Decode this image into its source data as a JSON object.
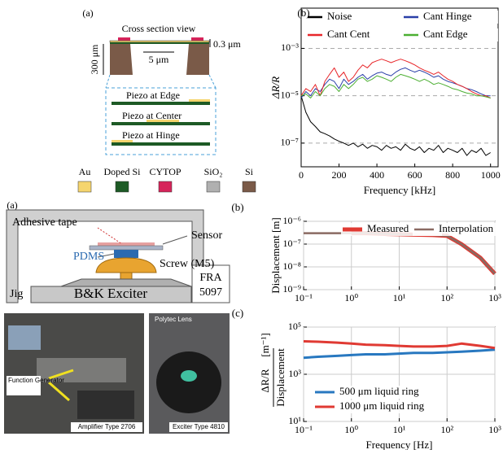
{
  "cross_section": {
    "panel": "(a)",
    "title": "Cross section view",
    "thickness": "0.3 μm",
    "gap": "5 μm",
    "depth": "300 μm",
    "variants": [
      "Piezo at Edge",
      "Piezo at Center",
      "Piezo at Hinge"
    ],
    "materials": [
      {
        "name": "Au",
        "color": "#f5d56e"
      },
      {
        "name": "Doped Si",
        "color": "#1d5a25"
      },
      {
        "name": "CYTOP",
        "color": "#d6245a"
      },
      {
        "name": "SiO₂",
        "color": "#b0b0b0"
      },
      {
        "name": "Si",
        "color": "#7a5a48"
      }
    ]
  },
  "setup": {
    "panel": "(a)",
    "labels": {
      "tape": "Adhesive tape",
      "sensor": "Sensor",
      "pdms": "PDMS",
      "screw": "Screw (M5)",
      "jig": "Jig",
      "exciter": "B&K Exciter",
      "fra": "FRA",
      "fra_model": "5097"
    },
    "photo_labels": {
      "generator": "Function Generator",
      "amplifier": "Amplifier Type 2706",
      "lens": "Polytec Lens",
      "exciter": "Exciter Type 4810"
    }
  },
  "chart_data": [
    {
      "type": "line",
      "label": "(b)",
      "xlabel": "Frequency [kHz]",
      "ylabel": "ΔR/R",
      "ylog": true,
      "grid": "y",
      "grid_dash": true,
      "xlim": [
        0,
        1040
      ],
      "ylim": [
        1e-08,
        0.05
      ],
      "xticks": [
        0,
        200,
        400,
        600,
        800,
        1000
      ],
      "yticks": [
        {
          "value": 0.001,
          "label": "10⁻³"
        },
        {
          "value": 1e-05,
          "label": "10⁻⁵"
        },
        {
          "value": 1e-07,
          "label": "10⁻⁷"
        }
      ],
      "x": [
        0,
        25,
        50,
        75,
        100,
        125,
        150,
        175,
        200,
        225,
        250,
        275,
        300,
        325,
        350,
        375,
        400,
        425,
        450,
        475,
        500,
        525,
        550,
        575,
        600,
        625,
        650,
        675,
        700,
        725,
        750,
        775,
        800,
        825,
        850,
        875,
        900,
        925,
        950,
        975,
        1000
      ],
      "series": [
        {
          "name": "Noise",
          "color": "#000000",
          "values": [
            1e-05,
            2e-06,
            8e-07,
            5e-07,
            3e-07,
            2.5e-07,
            2e-07,
            1.5e-07,
            1.2e-07,
            1e-07,
            8e-08,
            1e-07,
            7e-08,
            9e-08,
            6e-08,
            8e-08,
            7e-08,
            5e-08,
            8e-08,
            6e-08,
            7e-08,
            5e-08,
            9e-08,
            6e-08,
            5e-08,
            7e-08,
            4e-08,
            6e-08,
            5e-08,
            8e-08,
            4e-08,
            6e-08,
            5e-08,
            4e-08,
            6e-08,
            3e-08,
            5e-08,
            4e-08,
            6e-08,
            3e-08,
            4e-08
          ]
        },
        {
          "name": "Cant Hinge",
          "color": "#2a3fa8",
          "values": [
            8e-06,
            1.5e-05,
            1e-05,
            2e-05,
            1.5e-05,
            3e-05,
            5e-05,
            4e-05,
            2e-05,
            5e-05,
            3e-05,
            4e-05,
            6e-05,
            8e-05,
            5e-05,
            7e-05,
            9e-05,
            0.0001,
            8e-05,
            7e-05,
            0.0001,
            0.00013,
            0.00015,
            0.00012,
            0.0001,
            0.00012,
            0.0001,
            8e-05,
            6e-05,
            7e-05,
            5e-05,
            4e-05,
            3.5e-05,
            3e-05,
            2.5e-05,
            2e-05,
            1.8e-05,
            1.5e-05,
            1.2e-05,
            1e-05,
            1e-05
          ]
        },
        {
          "name": "Cant Cent",
          "color": "#e8262a",
          "values": [
            1e-05,
            2e-05,
            1.5e-05,
            3e-05,
            1e-05,
            4e-05,
            8e-05,
            0.00015,
            6e-05,
            0.0001,
            4e-05,
            6e-05,
            0.00012,
            0.0002,
            0.00015,
            0.00025,
            0.0003,
            0.00035,
            0.0003,
            0.00025,
            0.0003,
            0.00035,
            0.0003,
            0.00025,
            0.0002,
            0.00015,
            0.00012,
            0.0001,
            8e-05,
            0.0001,
            7e-05,
            5e-05,
            4e-05,
            3e-05,
            2.5e-05,
            2e-05,
            1.5e-05,
            1.2e-05,
            1e-05,
            1e-05,
            8e-06
          ]
        },
        {
          "name": "Cant Edge",
          "color": "#4caf32",
          "values": [
            1e-05,
            1.2e-05,
            8e-06,
            1.5e-05,
            1e-05,
            2e-05,
            3e-05,
            2.5e-05,
            1.5e-05,
            3e-05,
            2e-05,
            3e-05,
            5e-05,
            6e-05,
            4e-05,
            5e-05,
            7e-05,
            6e-05,
            5e-05,
            4e-05,
            6e-05,
            8e-05,
            7e-05,
            6e-05,
            5e-05,
            4e-05,
            5e-05,
            4e-05,
            3e-05,
            3.5e-05,
            3e-05,
            2.5e-05,
            2e-05,
            1.8e-05,
            1.5e-05,
            1.3e-05,
            1.2e-05,
            1e-05,
            1e-05,
            9e-06,
            8e-06
          ]
        }
      ]
    },
    {
      "type": "line",
      "label": "(b)",
      "ylabel": "Displacement [m]",
      "xlog": true,
      "ylog": true,
      "grid": "both",
      "xlim": [
        0.1,
        1000
      ],
      "ylim": [
        1e-09,
        1e-06
      ],
      "xticks": [
        {
          "value": 0.1,
          "label": "10⁻¹"
        },
        {
          "value": 1,
          "label": "10⁰"
        },
        {
          "value": 10,
          "label": "10¹"
        },
        {
          "value": 100,
          "label": "10²"
        },
        {
          "value": 1000,
          "label": "10³"
        }
      ],
      "yticks": [
        {
          "value": 1e-06,
          "label": "10⁻⁶"
        },
        {
          "value": 1e-07,
          "label": "10⁻⁷"
        },
        {
          "value": 1e-08,
          "label": "10⁻⁸"
        },
        {
          "value": 1e-09,
          "label": "10⁻⁹"
        }
      ],
      "x": [
        0.1,
        0.2,
        0.5,
        1,
        2,
        5,
        10,
        20,
        50,
        100,
        200,
        500,
        1000
      ],
      "series": [
        {
          "name": "Measured",
          "color": "#e03a33",
          "line_width": 5,
          "values": [
            null,
            null,
            null,
            3e-07,
            3e-07,
            2.8e-07,
            2.7e-07,
            2.6e-07,
            2.5e-07,
            2.3e-07,
            1e-07,
            2.5e-08,
            5e-09
          ]
        },
        {
          "name": "Interpolation",
          "color": "#8a6a62",
          "line_width": 2.5,
          "values": [
            3e-07,
            3e-07,
            3e-07,
            3e-07,
            3e-07,
            2.8e-07,
            2.7e-07,
            2.6e-07,
            2.5e-07,
            2.3e-07,
            1e-07,
            2.5e-08,
            5e-09
          ]
        }
      ]
    },
    {
      "type": "line",
      "label": "(c)",
      "xlabel": "Frequency [Hz]",
      "ylabel": "ΔR/R",
      "ylabel_denominator": "Displacement",
      "ylabel_unit": "[m⁻¹]",
      "xlog": true,
      "ylog": true,
      "grid": "both",
      "xlim": [
        0.1,
        1000
      ],
      "ylim": [
        10,
        100000
      ],
      "xticks": [
        {
          "value": 0.1,
          "label": "10⁻¹"
        },
        {
          "value": 1,
          "label": "10⁰"
        },
        {
          "value": 10,
          "label": "10¹"
        },
        {
          "value": 100,
          "label": "10²"
        },
        {
          "value": 1000,
          "label": "10³"
        }
      ],
      "yticks": [
        {
          "value": 100000,
          "label": "10⁵"
        },
        {
          "value": 1000,
          "label": "10³"
        },
        {
          "value": 10,
          "label": "10¹"
        }
      ],
      "x": [
        0.1,
        0.2,
        0.5,
        1,
        2,
        5,
        10,
        20,
        50,
        100,
        200,
        500,
        1000
      ],
      "series": [
        {
          "name": "500 μm liquid ring",
          "color": "#2878c0",
          "line_width": 3,
          "values": [
            5000,
            5500,
            6000,
            6500,
            7000,
            7000,
            7500,
            8000,
            8000,
            8500,
            9000,
            10000,
            11000
          ]
        },
        {
          "name": "1000 μm liquid ring",
          "color": "#e03a33",
          "line_width": 3,
          "values": [
            25000,
            24000,
            22000,
            20000,
            18000,
            17000,
            16000,
            15000,
            15000,
            16000,
            20000,
            16000,
            13000
          ]
        }
      ]
    }
  ]
}
